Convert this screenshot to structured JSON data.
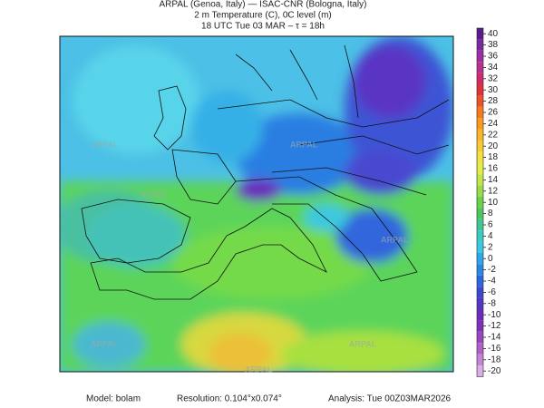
{
  "header": {
    "line1": "ARPAL (Genoa, Italy)  —  ISAC-CNR (Bologna, Italy)",
    "line2": "2 m Temperature (C), 0C level (m)",
    "line3": "18 UTC Tue 03 MAR  –  τ = 18h"
  },
  "watermark": "ARPAL",
  "colorbar": {
    "ticks": [
      40,
      38,
      36,
      34,
      32,
      30,
      28,
      26,
      24,
      22,
      20,
      18,
      16,
      14,
      12,
      10,
      8,
      6,
      4,
      2,
      0,
      -2,
      -4,
      -6,
      -8,
      -10,
      -12,
      -14,
      -16,
      -18,
      -20
    ],
    "colors": [
      "#5c1a8c",
      "#7a2a9e",
      "#9c2ea4",
      "#b8308e",
      "#d02a6a",
      "#e0303c",
      "#ee5226",
      "#f77a1e",
      "#fb9a1c",
      "#fbb52a",
      "#f8cc30",
      "#f4e040",
      "#e4ec46",
      "#c2e64a",
      "#98dc48",
      "#6cd24a",
      "#4cc85a",
      "#3cc896",
      "#38ccc4",
      "#3cc8e4",
      "#2ea8e8",
      "#2a88e4",
      "#2c66dc",
      "#3c48d0",
      "#5236c4",
      "#6a2cba",
      "#8030b8",
      "#9846c0",
      "#b060c8",
      "#c684d6",
      "#dcaee4"
    ]
  },
  "footer": {
    "model": "Model: bolam",
    "resolution": "Resolution: 0.104°x0.074°",
    "analysis": "Analysis: Tue 00Z03MAR2026"
  }
}
